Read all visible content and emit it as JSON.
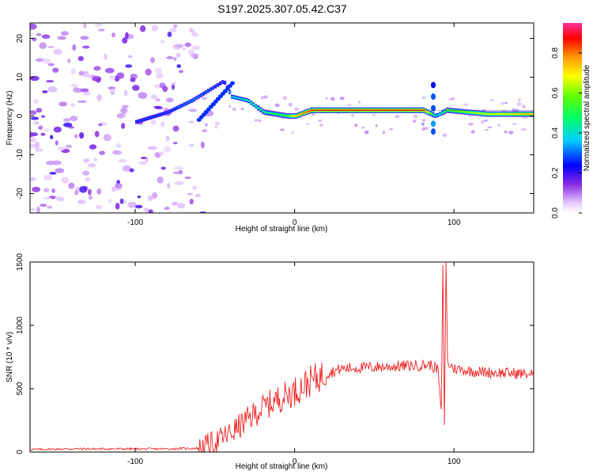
{
  "chart_data": [
    {
      "type": "heatmap",
      "title": "S197.2025.307.05.42.C37",
      "xlabel": "Height of straight line (km)",
      "ylabel": "Frequency (Hz)",
      "xlim": [
        -166,
        150
      ],
      "ylim": [
        -25,
        24
      ],
      "xticks": [
        -100,
        0,
        100
      ],
      "yticks": [
        -20,
        -10,
        0,
        10,
        20
      ],
      "tick_labels_x": [
        "-100",
        "0",
        "100"
      ],
      "tick_labels_y": [
        "-20",
        "-10",
        "0",
        "10",
        "20"
      ],
      "colorbar": {
        "label": "Normalized spectral amplitude",
        "range": [
          0,
          0.95
        ],
        "ticks": [
          0.0,
          0.2,
          0.4,
          0.6,
          0.8
        ],
        "tick_labels": [
          "0.0",
          "0.2",
          "0.4",
          "0.6",
          "0.8"
        ]
      },
      "ridge": {
        "description_points": [
          {
            "x": -100,
            "y": -1.5,
            "amp": 0.3
          },
          {
            "x": -80,
            "y": 1,
            "amp": 0.3
          },
          {
            "x": -65,
            "y": 4,
            "amp": 0.35
          },
          {
            "x": -45,
            "y": 9,
            "amp": 0.3
          },
          {
            "x": -40,
            "y": 5,
            "amp": 0.4
          },
          {
            "x": -30,
            "y": 4,
            "amp": 0.45
          },
          {
            "x": -20,
            "y": 1,
            "amp": 0.5
          },
          {
            "x": -5,
            "y": 0,
            "amp": 0.6
          },
          {
            "x": 0,
            "y": 0,
            "amp": 0.8
          },
          {
            "x": 10,
            "y": 1.5,
            "amp": 0.9
          },
          {
            "x": 80,
            "y": 1.5,
            "amp": 0.9
          },
          {
            "x": 88,
            "y": 0,
            "amp": 0.4
          },
          {
            "x": 95,
            "y": 1.5,
            "amp": 0.6
          },
          {
            "x": 120,
            "y": 0.5,
            "amp": 0.7
          },
          {
            "x": 150,
            "y": 0.5,
            "amp": 0.8
          }
        ]
      }
    },
    {
      "type": "line",
      "xlabel": "Height of straight line (km)",
      "ylabel": "SNR (10 * v/v)",
      "xlim": [
        -166,
        150
      ],
      "ylim": [
        0,
        1500
      ],
      "xticks": [
        -100,
        0,
        100
      ],
      "yticks": [
        0,
        500,
        1000,
        1500
      ],
      "tick_labels_x": [
        "-100",
        "0",
        "100"
      ],
      "tick_labels_y": [
        "0",
        "500",
        "1000",
        "1500"
      ],
      "series": [
        {
          "name": "SNR",
          "color": "#ee2222",
          "x": [
            -166,
            -140,
            -110,
            -80,
            -60,
            -50,
            -40,
            -30,
            -20,
            -10,
            0,
            10,
            20,
            30,
            40,
            50,
            60,
            70,
            80,
            85,
            90,
            92,
            93,
            94,
            95,
            96,
            100,
            110,
            120,
            130,
            140,
            150
          ],
          "y": [
            20,
            25,
            25,
            25,
            30,
            80,
            150,
            250,
            350,
            420,
            480,
            560,
            620,
            660,
            665,
            670,
            675,
            680,
            685,
            690,
            650,
            300,
            1450,
            220,
            1500,
            700,
            660,
            640,
            630,
            625,
            620,
            615
          ]
        }
      ]
    }
  ]
}
